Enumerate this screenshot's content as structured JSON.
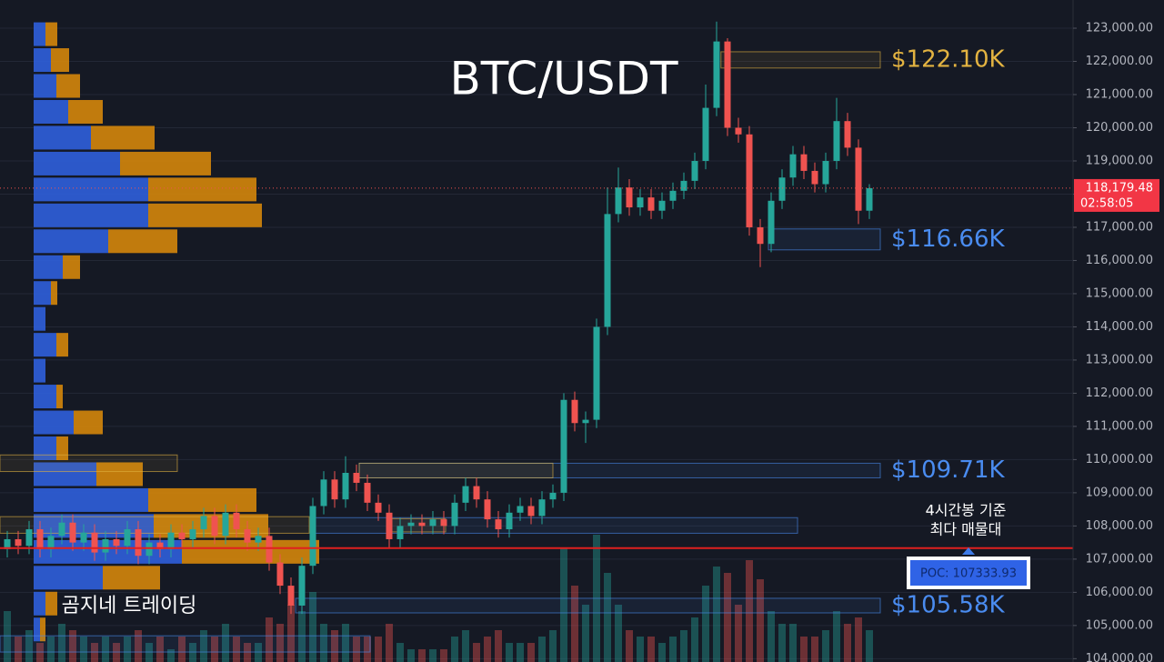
{
  "chart_data": {
    "type": "candlestick",
    "title": "BTC/USDT",
    "watermark": "곰지네 트레이딩",
    "open": [
      107300,
      107600,
      107400,
      107900,
      107300,
      107700,
      108100,
      107500,
      107800,
      107200,
      107600,
      107400,
      107900,
      107100,
      107500,
      107300,
      107800,
      107600,
      107900,
      108300,
      107700,
      108400,
      107900,
      107500,
      107700,
      106900,
      106200,
      105600,
      106800,
      108600,
      109400,
      108800,
      109600,
      109300,
      108700,
      108400,
      107600,
      108000,
      108100,
      108000,
      108200,
      108000,
      108700,
      109200,
      108800,
      108200,
      107900,
      108400,
      108600,
      108300,
      108800,
      109000,
      111800,
      111100,
      111200,
      114000,
      117400,
      118200,
      117600,
      117900,
      117500,
      117800,
      118100,
      118400,
      119000,
      120600,
      122600,
      120000,
      119800,
      117000,
      116500,
      117800,
      118500,
      119200,
      118700,
      118300,
      119000,
      120200,
      119400,
      117500
    ],
    "high": [
      107850,
      107850,
      108150,
      108150,
      107950,
      108350,
      108350,
      108050,
      108050,
      107850,
      107850,
      108150,
      108150,
      107750,
      107750,
      108050,
      108050,
      108150,
      108550,
      108550,
      108650,
      108650,
      108150,
      107950,
      107950,
      107150,
      106450,
      107050,
      108850,
      109650,
      109650,
      110100,
      109850,
      109550,
      108950,
      108650,
      108250,
      108350,
      108350,
      108450,
      108450,
      108950,
      109450,
      109450,
      109050,
      108450,
      108650,
      108850,
      108850,
      109050,
      109250,
      112000,
      112050,
      111450,
      114250,
      118200,
      118800,
      118450,
      118150,
      118150,
      118050,
      118350,
      118650,
      119250,
      121300,
      123200,
      122700,
      120300,
      120050,
      117250,
      118050,
      118750,
      119450,
      119450,
      118950,
      119250,
      120900,
      120450,
      119650,
      118300
    ],
    "low": [
      107050,
      107150,
      107150,
      107050,
      107050,
      107450,
      107250,
      107250,
      106950,
      106950,
      107150,
      107150,
      106850,
      106850,
      107050,
      107050,
      107350,
      107350,
      107650,
      107450,
      107450,
      107650,
      107250,
      107250,
      106650,
      105950,
      105350,
      105350,
      106550,
      108350,
      108550,
      108550,
      109050,
      108450,
      108150,
      107350,
      107350,
      107750,
      107750,
      107750,
      107750,
      107750,
      108450,
      108550,
      107950,
      107650,
      107650,
      108150,
      108050,
      108050,
      108550,
      108750,
      110850,
      110500,
      110950,
      113750,
      117150,
      117350,
      117350,
      117250,
      117250,
      117550,
      117850,
      118150,
      118750,
      120350,
      119750,
      119550,
      116750,
      115800,
      116250,
      117550,
      118250,
      118450,
      118050,
      118050,
      118750,
      119150,
      117100,
      117250
    ],
    "close": [
      107600,
      107400,
      107900,
      107300,
      107700,
      108100,
      107500,
      107800,
      107200,
      107600,
      107400,
      107900,
      107100,
      107500,
      107300,
      107800,
      107600,
      107900,
      108300,
      107700,
      108400,
      107900,
      107500,
      107700,
      106900,
      106200,
      105600,
      106800,
      108600,
      109400,
      108800,
      109600,
      109300,
      108700,
      108400,
      107600,
      108000,
      108100,
      108000,
      108200,
      108000,
      108700,
      109200,
      108800,
      108200,
      107900,
      108400,
      108600,
      108300,
      108800,
      109000,
      111800,
      111100,
      111200,
      114000,
      117400,
      118200,
      117600,
      117900,
      117500,
      117800,
      118100,
      118400,
      119000,
      120600,
      122600,
      120000,
      119800,
      117000,
      116500,
      117800,
      118500,
      119200,
      118700,
      118300,
      119000,
      120200,
      119400,
      117500,
      118179.48
    ],
    "volume": [
      40,
      20,
      25,
      15,
      20,
      30,
      25,
      20,
      15,
      20,
      15,
      20,
      25,
      15,
      20,
      10,
      20,
      15,
      25,
      20,
      30,
      20,
      15,
      15,
      35,
      30,
      45,
      40,
      55,
      30,
      25,
      30,
      20,
      20,
      20,
      30,
      15,
      10,
      10,
      10,
      10,
      20,
      25,
      15,
      20,
      25,
      15,
      15,
      15,
      20,
      25,
      90,
      60,
      45,
      100,
      70,
      45,
      25,
      20,
      20,
      15,
      20,
      25,
      35,
      60,
      75,
      70,
      45,
      80,
      65,
      40,
      30,
      30,
      20,
      20,
      25,
      40,
      30,
      35,
      25
    ],
    "up_color": "#26a69a",
    "down_color": "#ef5350",
    "ylim": [
      103900,
      123850
    ],
    "yticks": [
      {
        "value": 104000,
        "label": "104,000.00"
      },
      {
        "value": 105000,
        "label": "105,000.00"
      },
      {
        "value": 106000,
        "label": "106,000.00"
      },
      {
        "value": 107000,
        "label": "107,000.00"
      },
      {
        "value": 108000,
        "label": "108,000.00"
      },
      {
        "value": 109000,
        "label": "109,000.00"
      },
      {
        "value": 110000,
        "label": "110,000.00"
      },
      {
        "value": 111000,
        "label": "111,000.00"
      },
      {
        "value": 112000,
        "label": "112,000.00"
      },
      {
        "value": 113000,
        "label": "113,000.00"
      },
      {
        "value": 114000,
        "label": "114,000.00"
      },
      {
        "value": 115000,
        "label": "115,000.00"
      },
      {
        "value": 116000,
        "label": "116,000.00"
      },
      {
        "value": 117000,
        "label": "117,000.00"
      },
      {
        "value": 118000,
        "label": "118,000.00"
      },
      {
        "value": 119000,
        "label": "119,000.00"
      },
      {
        "value": 120000,
        "label": "120,000.00"
      },
      {
        "value": 121000,
        "label": "121,000.00"
      },
      {
        "value": 122000,
        "label": "122,000.00"
      },
      {
        "value": 123000,
        "label": "123,000.00"
      }
    ],
    "grid": true,
    "last_price": {
      "value": 118179.48,
      "label": "118,179.48"
    },
    "countdown": "02:58:05",
    "volume_profile": {
      "prices": [
        122820,
        122040,
        121260,
        120480,
        119700,
        118920,
        118140,
        117360,
        116580,
        115800,
        115020,
        114240,
        113460,
        112680,
        111900,
        111120,
        110340,
        109560,
        108780,
        108000,
        107220,
        106440,
        105660,
        104880
      ],
      "buy": [
        13,
        19,
        25,
        38,
        63,
        95,
        126,
        126,
        82,
        32,
        19,
        13,
        25,
        13,
        25,
        44,
        25,
        69,
        126,
        132,
        163,
        76,
        13,
        7
      ],
      "sell": [
        13,
        20,
        26,
        38,
        70,
        100,
        119,
        125,
        76,
        19,
        7,
        0,
        13,
        0,
        7,
        32,
        13,
        51,
        119,
        126,
        151,
        63,
        13,
        6
      ],
      "buy_color": "#2f5fdc",
      "sell_color": "#d4860b"
    },
    "zones": [
      {
        "from": 65.4,
        "to": 80,
        "low": 121800,
        "high": 122290,
        "color": "#e3b341",
        "label": "$122.10K"
      },
      {
        "from": 69.75,
        "to": 80,
        "low": 116320,
        "high": 116950,
        "color": "#4a8cf0",
        "label": "$116.66K"
      },
      {
        "from": 32.25,
        "to": 80,
        "low": 109450,
        "high": 109890,
        "color": "#4a8cf0",
        "label": "$109.71K"
      },
      {
        "from": 32.25,
        "to": 50,
        "low": 109450,
        "high": 109890,
        "color": "#e3b341"
      },
      {
        "from": -0.67,
        "to": 15.58,
        "low": 109640,
        "high": 110140,
        "color": "#e3b341"
      },
      {
        "from": -0.67,
        "to": 27.67,
        "low": 107780,
        "high": 108280,
        "color": "#e3b341"
      },
      {
        "from": 28.08,
        "to": 72.42,
        "low": 107780,
        "high": 108250,
        "color": "#4a8cf0"
      },
      {
        "from": 35.17,
        "to": 40.17,
        "low": 107820,
        "high": 108220,
        "color": "#e3b341"
      },
      {
        "from": 26.42,
        "to": 80,
        "low": 105380,
        "high": 105820,
        "color": "#4a8cf0",
        "label": "$105.58K"
      },
      {
        "from": -0.67,
        "to": 33.25,
        "low": 104200,
        "high": 104690,
        "color": "#4a8cf0"
      }
    ],
    "poc": {
      "value": 107333.93,
      "label": "POC: 107333.93",
      "note": [
        "4시간봉 기준",
        "최다 매물대"
      ],
      "color": "#e0201f"
    }
  }
}
